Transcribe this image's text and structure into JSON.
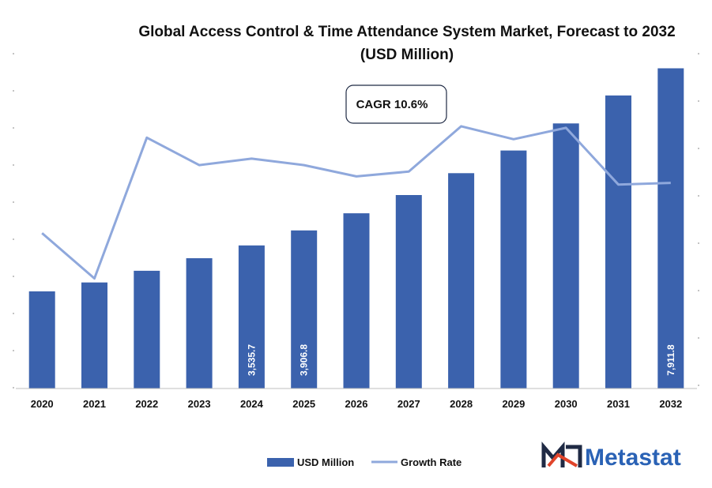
{
  "chart_data": {
    "type": "bar",
    "title": "Global Access Control & Time Attendance System Market, Forecast to 2032",
    "subtitle": "(USD Million)",
    "categories": [
      "2020",
      "2021",
      "2022",
      "2023",
      "2024",
      "2025",
      "2026",
      "2027",
      "2028",
      "2029",
      "2030",
      "2031",
      "2032"
    ],
    "series": [
      {
        "name": "USD Million",
        "kind": "bar",
        "values": [
          2400,
          2620,
          2910,
          3220,
          3535.7,
          3906.8,
          4330,
          4780,
          5320,
          5880,
          6550,
          7240,
          7911.8
        ]
      },
      {
        "name": "Growth Rate",
        "kind": "line",
        "values": [
          9.6,
          6.8,
          15.5,
          13.8,
          14.2,
          13.8,
          13.1,
          13.4,
          16.2,
          15.4,
          16.1,
          12.6,
          12.7
        ]
      }
    ],
    "data_labels": [
      {
        "index": 4,
        "text": "3,535.7"
      },
      {
        "index": 5,
        "text": "3,906.8"
      },
      {
        "index": 12,
        "text": "7,911.8"
      }
    ],
    "ylim": [
      0,
      8000
    ],
    "y2lim": [
      0,
      20
    ],
    "xlabel": "",
    "ylabel": "",
    "legend_position": "bottom-center",
    "annotation": "CAGR 10.6%",
    "colors": {
      "bar": "#3b62ad",
      "line": "#8fa8dc",
      "axis": "#bfbfbf"
    }
  },
  "brand": {
    "name": "Metastat",
    "colors": {
      "text": "#2a62b5",
      "logo_dark": "#1f2a44",
      "logo_accent": "#e0442a"
    }
  }
}
